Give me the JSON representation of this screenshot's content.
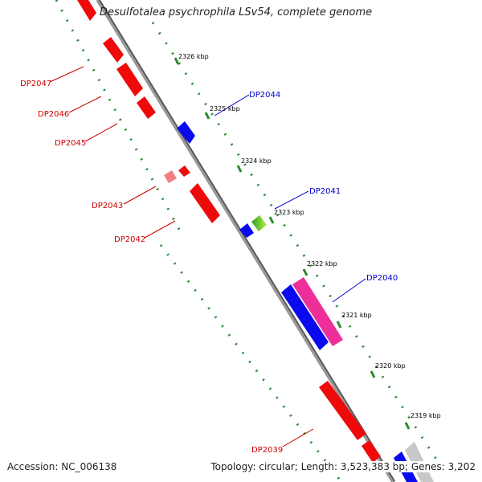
{
  "title": "Desulfotalea psychrophila LSv54, complete genome",
  "footer": {
    "accession": "Accession: NC_006138",
    "summary": "Topology: circular; Length: 3,523,383 bp; Genes: 3,202"
  },
  "colors": {
    "backbone": "#8c8c8c",
    "tick": "#2a8a2a",
    "forward_gene": "#0a0aee",
    "reverse_gene": "#ee0a0a",
    "forward_label": "#0000cc",
    "reverse_label": "#cc0000",
    "highlight_gene": "#ee2f9a"
  },
  "scale_ticks": [
    "2326 kbp",
    "2325 kbp",
    "2324 kbp",
    "2323 kbp",
    "2322 kbp",
    "2321 kbp",
    "2320 kbp",
    "2319 kbp"
  ],
  "genes": [
    {
      "label": "DP2047",
      "strand": "reverse"
    },
    {
      "label": "DP2046",
      "strand": "reverse"
    },
    {
      "label": "DP2045",
      "strand": "reverse"
    },
    {
      "label": "DP2044",
      "strand": "forward"
    },
    {
      "label": "DP2043",
      "strand": "reverse"
    },
    {
      "label": "DP2042",
      "strand": "reverse"
    },
    {
      "label": "DP2041",
      "strand": "forward"
    },
    {
      "label": "DP2040",
      "strand": "forward"
    },
    {
      "label": "DP2039",
      "strand": "reverse"
    }
  ]
}
